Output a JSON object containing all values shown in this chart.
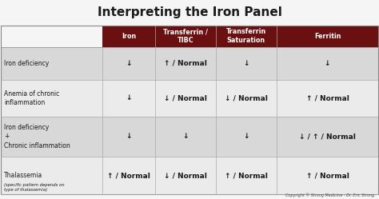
{
  "title": "Interpreting the Iron Panel",
  "title_fontsize": 11,
  "header_bg": "#6B1010",
  "header_text_color": "#FFFFFF",
  "row_bg_odd": "#D8D8D8",
  "row_bg_even": "#EBEBEB",
  "bg_color": "#F5F5F5",
  "text_color": "#1A1A1A",
  "copyright": "Copyright © Strong Medicine - Dr. Eric Strong",
  "col_headers": [
    "Iron",
    "Transferrin /\nTIBC",
    "Transferrin\nSaturation",
    "Ferritin"
  ],
  "rows": [
    {
      "label": "Iron deficiency",
      "label2": "",
      "cells": [
        "↓",
        "↑ / Normal",
        "↓",
        "↓"
      ]
    },
    {
      "label": "Anemia of chronic\ninflammation",
      "label2": "",
      "cells": [
        "↓",
        "↓ / Normal",
        "↓ / Normal",
        "↑ / Normal"
      ]
    },
    {
      "label": "Iron deficiency\n+\nChronic inflammation",
      "label2": "",
      "cells": [
        "↓",
        "↓",
        "↓",
        "↓ / ↑ / Normal"
      ]
    },
    {
      "label": "Thalassemia",
      "label2": "(specific pattern depends on\ntype of thalassemia)",
      "cells": [
        "↑ / Normal",
        "↓ / Normal",
        "↑ / Normal",
        "↑ / Normal"
      ]
    }
  ]
}
